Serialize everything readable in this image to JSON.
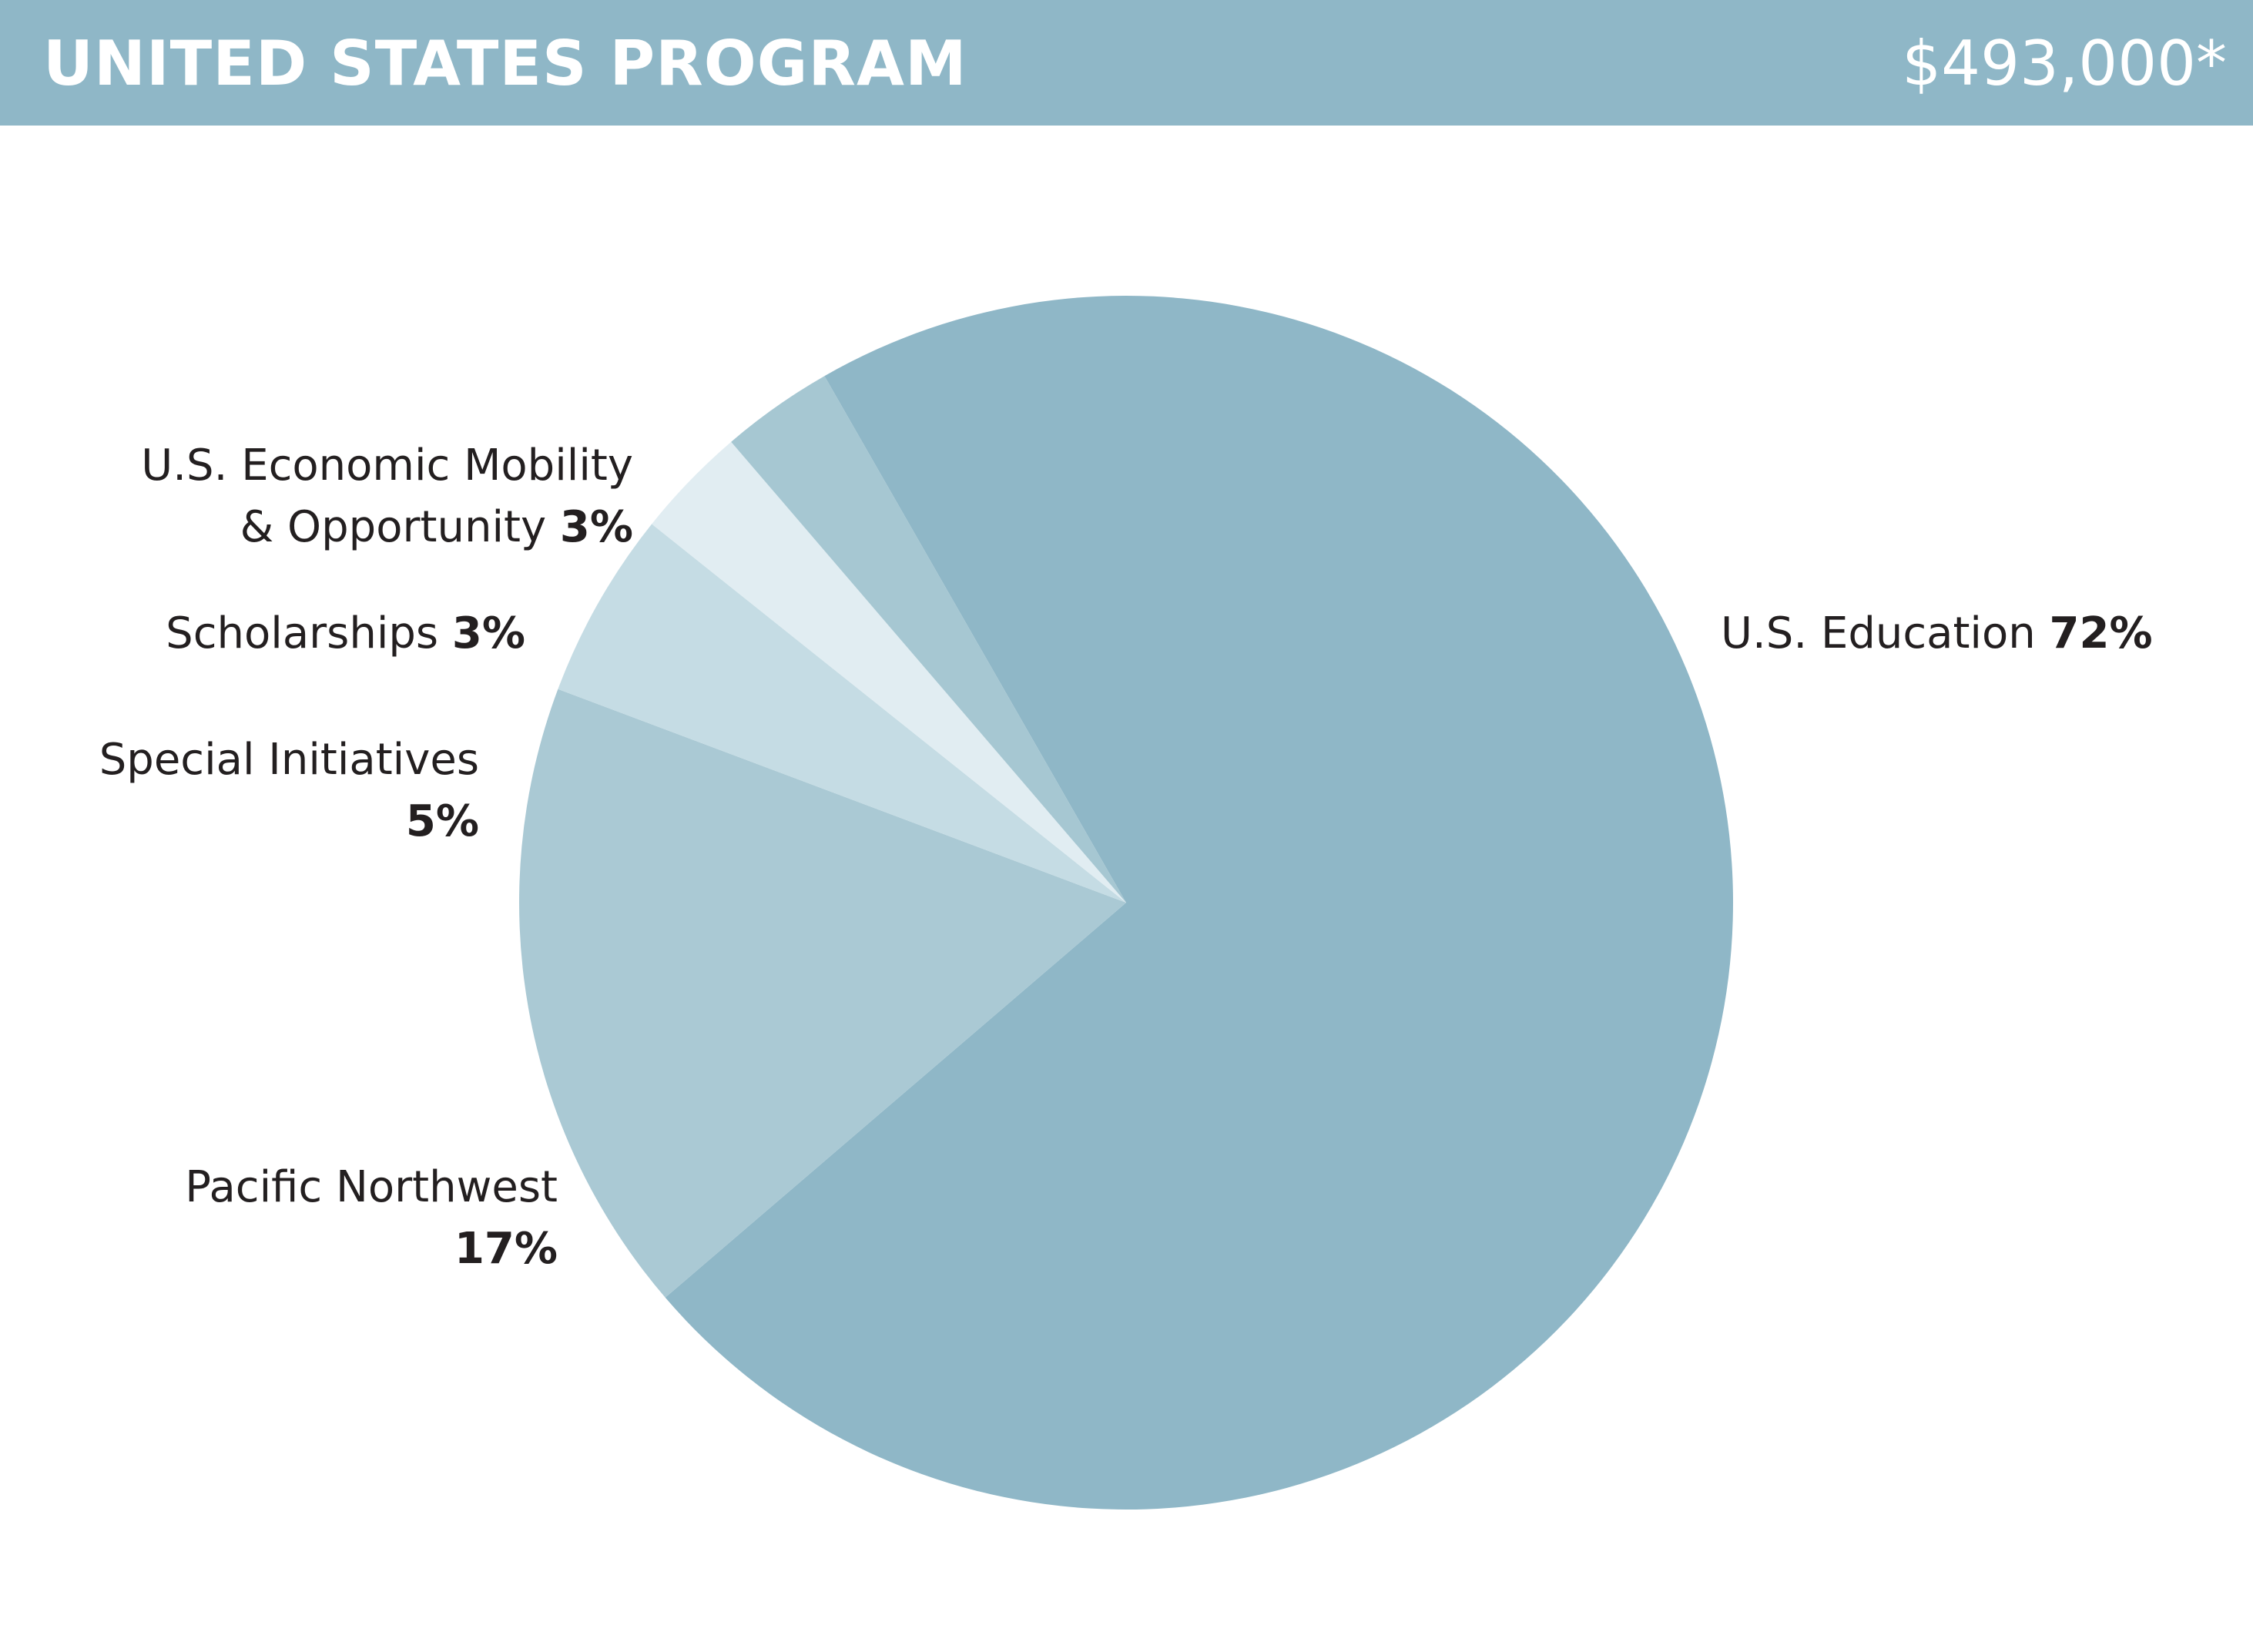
{
  "header": {
    "title": "UNITED STATES PROGRAM",
    "amount": "$493,000*",
    "background_color": "#8fb7c7",
    "text_color": "#ffffff"
  },
  "chart_data": {
    "type": "pie",
    "slices": [
      {
        "name": "U.S. Education",
        "value": 72,
        "pct_label": "72%",
        "color": "#8fb7c7"
      },
      {
        "name": "Pacific Northwest",
        "value": 17,
        "pct_label": "17%",
        "color": "#aac9d4"
      },
      {
        "name": "Special Initiatives",
        "value": 5,
        "pct_label": "5%",
        "color": "#c5dce4"
      },
      {
        "name": "Scholarships",
        "value": 3,
        "pct_label": "3%",
        "color": "#e1edf2"
      },
      {
        "name": "U.S. Economic Mobility & Opportunity",
        "name_line1": "U.S. Economic Mobility",
        "name_line2": "& Opportunity",
        "value": 3,
        "pct_label": "3%",
        "color": "#a6c7d2"
      }
    ],
    "legend": "labels-beside-slices"
  }
}
